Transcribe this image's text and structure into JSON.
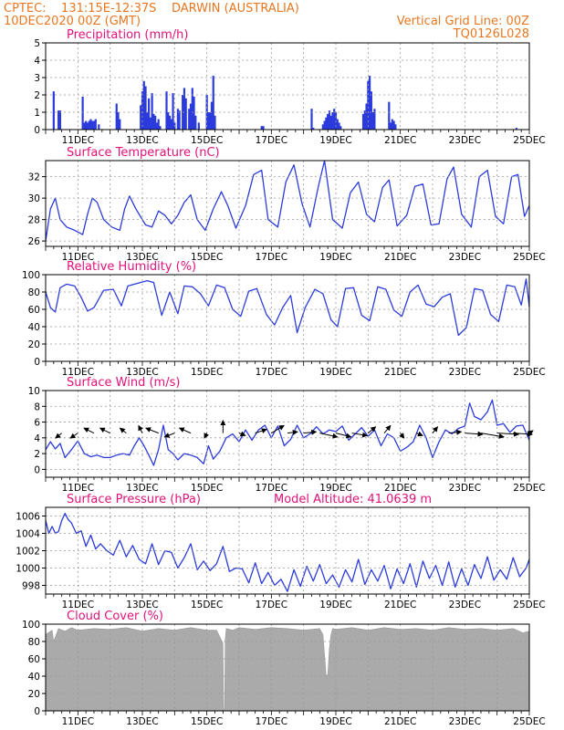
{
  "header": {
    "line1_left": "CPTEC:    131:15E-12:37S    DARWIN (AUSTRALIA)",
    "line2_left": "10DEC2020 00Z (GMT)",
    "line2_right": "Vertical Grid Line: 00Z",
    "line3_right": "TQ0126L028"
  },
  "colors": {
    "series": "#2b3bdc",
    "cloud": "#aaaaaa",
    "header": "#e87722",
    "panel_title": "#e0127a"
  },
  "chart_data": [
    {
      "id": "precip",
      "type": "bar",
      "title": "Precipitation (mm/h)",
      "ylim": [
        0,
        5
      ],
      "yticks": [
        0,
        1,
        2,
        3,
        4,
        5
      ],
      "xlim": [
        0,
        15
      ],
      "xticks": [
        "11DEC",
        "13DEC",
        "15DEC",
        "17DEC",
        "19DEC",
        "21DEC",
        "23DEC",
        "25DEC"
      ],
      "x": [
        0.25,
        0.4,
        0.45,
        1.15,
        1.2,
        1.25,
        1.3,
        1.35,
        1.4,
        1.45,
        1.5,
        1.55,
        1.65,
        2.2,
        2.25,
        2.3,
        2.95,
        3.0,
        3.05,
        3.1,
        3.15,
        3.2,
        3.25,
        3.3,
        3.35,
        3.4,
        3.45,
        3.5,
        3.55,
        3.75,
        3.8,
        3.85,
        3.9,
        3.95,
        4.0,
        4.1,
        4.15,
        4.25,
        4.3,
        4.35,
        4.45,
        4.5,
        4.55,
        4.6,
        4.65,
        4.75,
        5.0,
        5.05,
        5.1,
        5.15,
        5.2,
        5.25,
        6.7,
        6.75,
        8.25,
        8.3,
        8.6,
        8.65,
        8.7,
        8.75,
        8.8,
        8.85,
        8.9,
        8.95,
        9.0,
        9.05,
        9.1,
        9.15,
        9.85,
        9.9,
        9.95,
        10.0,
        10.05,
        10.1,
        10.15,
        10.2,
        10.65,
        10.7,
        10.75,
        10.8,
        10.85,
        14.6
      ],
      "values": [
        2.2,
        1.1,
        1.1,
        1.9,
        0.4,
        0.5,
        0.4,
        0.5,
        0.6,
        0.5,
        0.5,
        0.6,
        0.3,
        1.5,
        1.0,
        0.6,
        1.4,
        2.2,
        2.8,
        2.5,
        1.0,
        1.8,
        0.7,
        2.1,
        0.9,
        0.8,
        0.4,
        0.6,
        0.2,
        2.2,
        1.0,
        0.8,
        0.6,
        2.1,
        0.4,
        1.2,
        1.1,
        2.0,
        2.4,
        1.8,
        1.2,
        1.5,
        2.4,
        1.9,
        0.8,
        0.4,
        2.0,
        1.0,
        1.0,
        1.6,
        3.1,
        0.8,
        0.2,
        0.2,
        1.2,
        0.1,
        0.3,
        0.5,
        0.7,
        0.9,
        1.1,
        0.8,
        1.0,
        1.2,
        1.0,
        0.6,
        0.4,
        0.2,
        0.9,
        1.1,
        1.5,
        2.8,
        3.1,
        2.2,
        1.0,
        1.2,
        1.6,
        0.4,
        0.6,
        0.5,
        0.3,
        0.1
      ]
    },
    {
      "id": "temp",
      "type": "line",
      "title": "Surface Temperature (nC)",
      "ylim": [
        25.5,
        33.5
      ],
      "yticks": [
        26,
        28,
        30,
        32
      ],
      "xlim": [
        0,
        15
      ],
      "xticks": [
        "11DEC",
        "13DEC",
        "15DEC",
        "17DEC",
        "19DEC",
        "21DEC",
        "23DEC",
        "25DEC"
      ],
      "x": [
        0.0,
        0.15,
        0.3,
        0.45,
        0.65,
        0.9,
        1.15,
        1.3,
        1.45,
        1.6,
        1.8,
        2.05,
        2.3,
        2.45,
        2.6,
        2.8,
        3.1,
        3.3,
        3.5,
        3.7,
        3.9,
        4.1,
        4.3,
        4.5,
        4.7,
        4.95,
        5.2,
        5.45,
        5.65,
        5.9,
        6.2,
        6.45,
        6.7,
        6.9,
        7.2,
        7.45,
        7.7,
        7.95,
        8.2,
        8.45,
        8.65,
        8.9,
        9.2,
        9.45,
        9.7,
        9.95,
        10.2,
        10.45,
        10.65,
        10.9,
        11.2,
        11.45,
        11.7,
        11.95,
        12.2,
        12.45,
        12.65,
        12.9,
        13.2,
        13.45,
        13.7,
        13.95,
        14.2,
        14.45,
        14.65,
        14.85,
        15.0
      ],
      "values": [
        26.0,
        29.0,
        30.0,
        28.0,
        27.3,
        27.0,
        26.6,
        28.5,
        30.0,
        29.6,
        28.0,
        27.3,
        27.0,
        29.0,
        30.2,
        29.0,
        27.5,
        27.3,
        28.8,
        28.4,
        27.6,
        28.4,
        29.6,
        30.3,
        28.0,
        27.0,
        29.0,
        30.6,
        29.3,
        27.2,
        29.3,
        32.2,
        32.6,
        28.0,
        27.3,
        31.5,
        33.1,
        29.5,
        27.3,
        31.0,
        33.5,
        28.0,
        27.2,
        30.5,
        31.5,
        28.5,
        27.8,
        31.0,
        31.7,
        27.4,
        28.4,
        31.1,
        31.3,
        27.5,
        27.6,
        31.8,
        32.9,
        28.5,
        27.3,
        32.0,
        32.6,
        28.3,
        27.6,
        32.0,
        32.2,
        28.3,
        29.3
      ]
    },
    {
      "id": "rh",
      "type": "line",
      "title": "Relative Humidity (%)",
      "ylim": [
        0,
        100
      ],
      "yticks": [
        0,
        20,
        40,
        60,
        80,
        100
      ],
      "xlim": [
        0,
        15
      ],
      "xticks": [
        "11DEC",
        "13DEC",
        "15DEC",
        "17DEC",
        "19DEC",
        "21DEC",
        "23DEC",
        "25DEC"
      ],
      "x": [
        0.0,
        0.15,
        0.3,
        0.45,
        0.65,
        0.9,
        1.1,
        1.3,
        1.5,
        1.8,
        2.1,
        2.35,
        2.55,
        2.85,
        3.15,
        3.35,
        3.6,
        3.85,
        4.1,
        4.3,
        4.55,
        4.8,
        5.05,
        5.3,
        5.55,
        5.8,
        6.05,
        6.3,
        6.55,
        6.85,
        7.1,
        7.35,
        7.6,
        7.8,
        8.05,
        8.35,
        8.6,
        8.85,
        9.05,
        9.3,
        9.55,
        9.8,
        10.05,
        10.3,
        10.55,
        10.8,
        11.05,
        11.3,
        11.55,
        11.8,
        12.05,
        12.3,
        12.55,
        12.8,
        13.05,
        13.3,
        13.55,
        13.8,
        14.05,
        14.3,
        14.55,
        14.75,
        14.9,
        15.0
      ],
      "values": [
        80,
        62,
        57,
        85,
        89,
        87,
        74,
        58,
        62,
        82,
        83,
        64,
        87,
        90,
        93,
        91,
        53,
        80,
        55,
        87,
        86,
        78,
        64,
        88,
        85,
        60,
        52,
        81,
        84,
        54,
        42,
        62,
        76,
        33,
        62,
        83,
        78,
        48,
        40,
        84,
        85,
        53,
        47,
        86,
        83,
        59,
        52,
        80,
        88,
        66,
        63,
        74,
        78,
        30,
        39,
        84,
        82,
        54,
        46,
        88,
        86,
        65,
        95,
        63
      ]
    },
    {
      "id": "wind",
      "type": "line",
      "title": "Surface Wind (m/s)",
      "ylim": [
        -1,
        10
      ],
      "yticks": [
        0,
        2,
        4,
        6,
        8,
        10
      ],
      "xlim": [
        0,
        15
      ],
      "xticks": [
        "11DEC",
        "13DEC",
        "15DEC",
        "17DEC",
        "19DEC",
        "21DEC",
        "23DEC",
        "25DEC"
      ],
      "x": [
        0.0,
        0.15,
        0.3,
        0.45,
        0.6,
        0.8,
        1.0,
        1.2,
        1.4,
        1.6,
        1.8,
        2.0,
        2.2,
        2.4,
        2.6,
        2.75,
        2.9,
        3.05,
        3.2,
        3.35,
        3.5,
        3.65,
        3.8,
        3.95,
        4.1,
        4.3,
        4.5,
        4.7,
        4.9,
        5.05,
        5.2,
        5.4,
        5.6,
        5.8,
        6.0,
        6.2,
        6.4,
        6.6,
        6.8,
        7.0,
        7.2,
        7.4,
        7.6,
        7.8,
        8.0,
        8.2,
        8.4,
        8.6,
        8.8,
        9.0,
        9.2,
        9.4,
        9.6,
        9.8,
        10.0,
        10.2,
        10.4,
        10.6,
        10.8,
        11.0,
        11.2,
        11.4,
        11.6,
        11.8,
        12.0,
        12.2,
        12.4,
        12.6,
        12.8,
        13.0,
        13.15,
        13.3,
        13.5,
        13.7,
        13.85,
        14.0,
        14.2,
        14.4,
        14.6,
        14.8,
        15.0
      ],
      "values": [
        2.5,
        3.5,
        2.6,
        3.3,
        1.5,
        2.5,
        3.6,
        2.0,
        1.6,
        1.8,
        1.5,
        1.5,
        1.8,
        2.0,
        1.8,
        3.0,
        4.0,
        3.0,
        1.8,
        0.5,
        2.5,
        5.6,
        2.5,
        2.0,
        1.2,
        2.0,
        1.8,
        1.5,
        0.7,
        3.0,
        1.3,
        2.3,
        4.0,
        4.5,
        3.5,
        5.0,
        3.7,
        5.0,
        5.6,
        4.0,
        5.5,
        3.0,
        3.8,
        5.6,
        4.0,
        4.5,
        5.4,
        4.5,
        5.0,
        4.8,
        5.5,
        3.7,
        4.5,
        5.3,
        4.2,
        5.0,
        3.0,
        4.5,
        4.0,
        2.3,
        2.8,
        3.5,
        5.6,
        4.0,
        1.5,
        3.5,
        5.0,
        4.5,
        5.2,
        5.5,
        8.4,
        6.7,
        6.3,
        7.3,
        8.8,
        5.6,
        5.8,
        4.7,
        5.5,
        5.6,
        3.7
      ],
      "vectors": {
        "x": [
          0.5,
          1.0,
          1.5,
          2.0,
          2.5,
          3.0,
          3.5,
          4.0,
          4.5,
          5.0,
          5.5,
          6.0,
          6.5,
          7.0,
          7.5,
          8.0,
          8.5,
          9.0,
          9.5,
          10.0,
          10.5,
          11.0,
          11.5,
          12.0,
          12.5,
          13.0,
          13.5,
          14.0,
          14.5,
          15.0
        ],
        "u": [
          -0.5,
          -0.6,
          -0.8,
          -0.8,
          -0.5,
          -0.3,
          -1.0,
          -0.8,
          -0.9,
          -0.2,
          0.0,
          0.5,
          0.9,
          1.0,
          0.8,
          1.0,
          1.4,
          1.2,
          1.2,
          0.6,
          0.5,
          0.3,
          0.5,
          0.4,
          1.0,
          1.4,
          1.8,
          1.7,
          1.5,
          0.3
        ],
        "v": [
          -0.4,
          -0.4,
          0.4,
          0.4,
          0.4,
          0.6,
          0.4,
          -0.3,
          0.4,
          -0.4,
          1.0,
          -0.2,
          0.3,
          0.6,
          0.1,
          0.1,
          -0.3,
          -0.3,
          -0.2,
          0.5,
          0.6,
          -0.4,
          -0.2,
          0.5,
          0.1,
          -0.1,
          -0.3,
          -0.1,
          -0.1,
          0.2
        ]
      }
    },
    {
      "id": "pres",
      "type": "line",
      "title": "Surface Pressure (hPa)",
      "annotation": "Model Altitude: 41.0639  m",
      "ylim": [
        997,
        1007
      ],
      "yticks": [
        998,
        1000,
        1002,
        1004,
        1006
      ],
      "xlim": [
        0,
        15
      ],
      "xticks": [
        "11DEC",
        "13DEC",
        "15DEC",
        "17DEC",
        "19DEC",
        "21DEC",
        "23DEC",
        "25DEC"
      ],
      "x": [
        0.0,
        0.1,
        0.2,
        0.3,
        0.4,
        0.5,
        0.6,
        0.7,
        0.8,
        0.95,
        1.1,
        1.25,
        1.4,
        1.55,
        1.7,
        1.9,
        2.1,
        2.3,
        2.5,
        2.7,
        2.9,
        3.1,
        3.3,
        3.5,
        3.7,
        3.9,
        4.1,
        4.3,
        4.5,
        4.7,
        4.9,
        5.1,
        5.3,
        5.5,
        5.7,
        5.9,
        6.1,
        6.3,
        6.5,
        6.7,
        6.9,
        7.1,
        7.3,
        7.5,
        7.7,
        7.9,
        8.1,
        8.3,
        8.5,
        8.7,
        8.9,
        9.1,
        9.3,
        9.5,
        9.7,
        9.9,
        10.1,
        10.3,
        10.5,
        10.7,
        10.9,
        11.1,
        11.3,
        11.5,
        11.7,
        11.9,
        12.1,
        12.3,
        12.5,
        12.7,
        12.9,
        13.1,
        13.3,
        13.5,
        13.7,
        13.9,
        14.1,
        14.3,
        14.5,
        14.7,
        14.9,
        15.0
      ],
      "values": [
        1005.5,
        1004.0,
        1004.8,
        1004.0,
        1004.2,
        1005.5,
        1006.3,
        1005.6,
        1005.2,
        1004.0,
        1004.3,
        1002.5,
        1003.8,
        1002.2,
        1002.8,
        1002.0,
        1001.5,
        1003.2,
        1001.3,
        1002.6,
        1001.0,
        1000.5,
        1002.8,
        1000.4,
        1002.0,
        1001.8,
        1000.0,
        1001.2,
        1002.8,
        999.8,
        1000.8,
        999.7,
        1000.5,
        1002.5,
        999.6,
        1000.0,
        999.9,
        998.3,
        1000.6,
        998.2,
        999.5,
        998.0,
        998.7,
        997.3,
        999.8,
        997.9,
        1000.2,
        998.5,
        1000.4,
        998.2,
        999.2,
        997.8,
        999.8,
        998.4,
        1001.0,
        998.1,
        999.8,
        998.5,
        1000.3,
        997.6,
        999.9,
        998.2,
        1000.5,
        997.8,
        1000.8,
        998.8,
        1000.3,
        998.0,
        1000.7,
        997.8,
        999.9,
        998.0,
        1000.4,
        998.8,
        1001.3,
        998.6,
        999.8,
        998.7,
        1001.2,
        999.0,
        1000.0,
        1001.0
      ]
    },
    {
      "id": "cloud",
      "type": "area",
      "title": "Cloud Cover (%)",
      "ylim": [
        0,
        100
      ],
      "yticks": [
        0,
        20,
        40,
        60,
        80,
        100
      ],
      "xlim": [
        0,
        15
      ],
      "xticks": [
        "11DEC",
        "13DEC",
        "15DEC",
        "17DEC",
        "19DEC",
        "21DEC",
        "23DEC",
        "25DEC"
      ],
      "x": [
        0.0,
        0.2,
        0.25,
        0.4,
        0.6,
        0.8,
        1.0,
        1.5,
        2.0,
        2.5,
        3.0,
        3.5,
        4.0,
        4.5,
        5.0,
        5.3,
        5.5,
        5.52,
        5.55,
        5.57,
        5.6,
        5.8,
        6.0,
        6.5,
        7.0,
        7.5,
        8.0,
        8.5,
        8.6,
        8.7,
        8.75,
        8.8,
        8.85,
        8.9,
        9.0,
        9.5,
        10.0,
        10.5,
        11.0,
        11.5,
        12.0,
        12.5,
        13.0,
        13.5,
        14.0,
        14.5,
        14.8,
        15.0
      ],
      "values": [
        88,
        93,
        80,
        95,
        92,
        96,
        93,
        95,
        94,
        96,
        92,
        95,
        93,
        96,
        93,
        93,
        78,
        2,
        2,
        82,
        95,
        93,
        96,
        94,
        96,
        95,
        93,
        95,
        88,
        40,
        42,
        72,
        88,
        95,
        94,
        96,
        93,
        96,
        94,
        95,
        93,
        96,
        94,
        95,
        93,
        95,
        90,
        92
      ]
    }
  ]
}
